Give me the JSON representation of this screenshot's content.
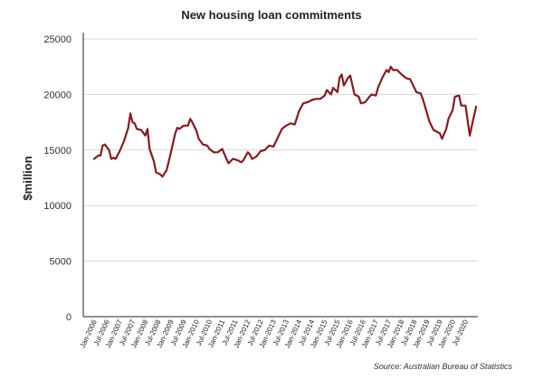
{
  "chart_data": {
    "type": "line",
    "title": "New housing loan commitments",
    "ylabel": "$million",
    "xlabel": "",
    "source": "Source: Australian Bureau of Statistics",
    "ylim": [
      0,
      25000
    ],
    "yticks": [
      "0",
      "5000",
      "10000",
      "15000",
      "20000",
      "25000"
    ],
    "xtick_labels": [
      "Jan-2006",
      "Jul-2006",
      "Jan-2007",
      "Jul-2007",
      "Jan-2008",
      "Jul-2008",
      "Jan-2009",
      "Jul-2009",
      "Jan-2010",
      "Jul-2010",
      "Jan-2011",
      "Jul-2011",
      "Jan-2012",
      "Jul-2012",
      "Jan-2013",
      "Jul-2013",
      "Jan-2014",
      "Jul-2014",
      "Jan-2015",
      "Jul-2015",
      "Jan-2016",
      "Jul-2016",
      "Jan-2017",
      "Jul-2017",
      "Jan-2018",
      "Jul-2018",
      "Jan-2019",
      "Jul-2019",
      "Jan-2020",
      "Jul-2020"
    ],
    "grid": true,
    "legend": "none",
    "series": [
      {
        "color": "#8b1a1a",
        "points": [
          [
            "2006-01",
            14200
          ],
          [
            "2006-03",
            14500
          ],
          [
            "2006-04",
            14500
          ],
          [
            "2006-05",
            15400
          ],
          [
            "2006-06",
            15500
          ],
          [
            "2006-08",
            15000
          ],
          [
            "2006-09",
            14200
          ],
          [
            "2006-10",
            14300
          ],
          [
            "2006-11",
            14200
          ],
          [
            "2007-01",
            14900
          ],
          [
            "2007-03",
            15800
          ],
          [
            "2007-05",
            17000
          ],
          [
            "2007-06",
            18300
          ],
          [
            "2007-07",
            17500
          ],
          [
            "2007-08",
            17400
          ],
          [
            "2007-09",
            16900
          ],
          [
            "2007-11",
            16800
          ],
          [
            "2008-01",
            16300
          ],
          [
            "2008-02",
            16900
          ],
          [
            "2008-03",
            15100
          ],
          [
            "2008-05",
            14000
          ],
          [
            "2008-06",
            13000
          ],
          [
            "2008-08",
            12800
          ],
          [
            "2008-09",
            12600
          ],
          [
            "2008-11",
            13200
          ],
          [
            "2009-01",
            14800
          ],
          [
            "2009-03",
            16500
          ],
          [
            "2009-04",
            17000
          ],
          [
            "2009-05",
            16900
          ],
          [
            "2009-07",
            17200
          ],
          [
            "2009-09",
            17200
          ],
          [
            "2009-10",
            17800
          ],
          [
            "2009-11",
            17500
          ],
          [
            "2010-01",
            16700
          ],
          [
            "2010-02",
            16000
          ],
          [
            "2010-04",
            15500
          ],
          [
            "2010-06",
            15400
          ],
          [
            "2010-07",
            15100
          ],
          [
            "2010-09",
            14800
          ],
          [
            "2010-11",
            14800
          ],
          [
            "2011-01",
            15100
          ],
          [
            "2011-03",
            14200
          ],
          [
            "2011-04",
            13800
          ],
          [
            "2011-06",
            14200
          ],
          [
            "2011-08",
            14100
          ],
          [
            "2011-10",
            13900
          ],
          [
            "2011-11",
            14100
          ],
          [
            "2012-01",
            14800
          ],
          [
            "2012-02",
            14600
          ],
          [
            "2012-03",
            14200
          ],
          [
            "2012-05",
            14400
          ],
          [
            "2012-07",
            14900
          ],
          [
            "2012-09",
            15000
          ],
          [
            "2012-11",
            15400
          ],
          [
            "2013-01",
            15300
          ],
          [
            "2013-03",
            16100
          ],
          [
            "2013-05",
            16900
          ],
          [
            "2013-07",
            17200
          ],
          [
            "2013-09",
            17400
          ],
          [
            "2013-11",
            17300
          ],
          [
            "2014-01",
            18500
          ],
          [
            "2014-03",
            19200
          ],
          [
            "2014-05",
            19300
          ],
          [
            "2014-07",
            19500
          ],
          [
            "2014-09",
            19600
          ],
          [
            "2014-11",
            19600
          ],
          [
            "2015-01",
            19900
          ],
          [
            "2015-02",
            20400
          ],
          [
            "2015-04",
            20000
          ],
          [
            "2015-05",
            20600
          ],
          [
            "2015-07",
            20200
          ],
          [
            "2015-08",
            21500
          ],
          [
            "2015-09",
            21800
          ],
          [
            "2015-10",
            20800
          ],
          [
            "2015-12",
            21500
          ],
          [
            "2016-01",
            21700
          ],
          [
            "2016-03",
            20000
          ],
          [
            "2016-05",
            19800
          ],
          [
            "2016-06",
            19200
          ],
          [
            "2016-08",
            19300
          ],
          [
            "2016-10",
            19800
          ],
          [
            "2016-11",
            20000
          ],
          [
            "2017-01",
            19900
          ],
          [
            "2017-02",
            20600
          ],
          [
            "2017-04",
            21500
          ],
          [
            "2017-06",
            22200
          ],
          [
            "2017-07",
            22000
          ],
          [
            "2017-08",
            22500
          ],
          [
            "2017-09",
            22200
          ],
          [
            "2017-11",
            22200
          ],
          [
            "2018-01",
            21800
          ],
          [
            "2018-03",
            21500
          ],
          [
            "2018-04",
            21400
          ],
          [
            "2018-05",
            21400
          ],
          [
            "2018-07",
            20600
          ],
          [
            "2018-08",
            20200
          ],
          [
            "2018-10",
            20100
          ],
          [
            "2018-11",
            19600
          ],
          [
            "2019-01",
            18300
          ],
          [
            "2019-02",
            17600
          ],
          [
            "2019-04",
            16800
          ],
          [
            "2019-05",
            16700
          ],
          [
            "2019-07",
            16500
          ],
          [
            "2019-08",
            16000
          ],
          [
            "2019-10",
            16900
          ],
          [
            "2019-11",
            17800
          ],
          [
            "2020-01",
            18600
          ],
          [
            "2020-02",
            19800
          ],
          [
            "2020-04",
            19900
          ],
          [
            "2020-05",
            19000
          ],
          [
            "2020-07",
            19000
          ],
          [
            "2020-09",
            16300
          ],
          [
            "2020-10",
            17200
          ],
          [
            "2020-12",
            18900
          ]
        ]
      }
    ]
  }
}
